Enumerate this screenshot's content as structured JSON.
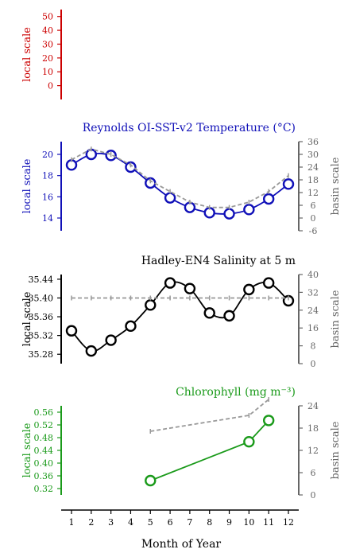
{
  "x_axis": {
    "label": "Month of Year",
    "ticks": [
      1,
      2,
      3,
      4,
      5,
      6,
      7,
      8,
      9,
      10,
      11,
      12
    ]
  },
  "chart_data": [
    {
      "type": "line",
      "title": "",
      "color": "#cc0000",
      "ylabel": "local scale",
      "ylim": [
        -10,
        55
      ],
      "yticks": [
        0,
        10,
        20,
        30,
        40,
        50
      ],
      "series": [
        {
          "role": "local",
          "x": [],
          "y": []
        }
      ]
    },
    {
      "type": "line",
      "title": "Reynolds OI-SST-v2 Temperature (°C)",
      "color": "#1010b8",
      "ylabel": "local scale",
      "ylim": [
        12.8,
        21.2
      ],
      "yticks": [
        14,
        16,
        18,
        20
      ],
      "right_axis": {
        "label": "basin scale",
        "ylim": [
          -6,
          36
        ],
        "ticks": [
          -6,
          0,
          6,
          12,
          18,
          24,
          30,
          36
        ]
      },
      "series": [
        {
          "role": "local",
          "x": [
            1,
            2,
            3,
            4,
            5,
            6,
            7,
            8,
            9,
            10,
            11,
            12
          ],
          "y": [
            19.0,
            20.0,
            19.9,
            18.8,
            17.3,
            15.9,
            15.0,
            14.5,
            14.4,
            14.8,
            15.8,
            17.2
          ]
        },
        {
          "role": "basin",
          "x": [
            1,
            2,
            3,
            4,
            5,
            6,
            7,
            8,
            9,
            10,
            11,
            12
          ],
          "y": [
            19.5,
            20.5,
            20.0,
            19.0,
            17.5,
            16.5,
            15.5,
            15.0,
            15.0,
            15.5,
            16.5,
            18.0
          ]
        }
      ]
    },
    {
      "type": "line",
      "title": "Hadley-EN4 Salinity at 5 m",
      "color": "#000000",
      "ylabel": "local scale",
      "ylim": [
        35.26,
        35.45
      ],
      "yticks": [
        35.28,
        35.32,
        35.36,
        35.4,
        35.44
      ],
      "right_axis": {
        "label": "basin scale",
        "ylim": [
          0,
          40
        ],
        "ticks": [
          0,
          8,
          16,
          24,
          32,
          40
        ]
      },
      "series": [
        {
          "role": "local",
          "x": [
            1,
            2,
            3,
            4,
            5,
            6,
            7,
            8,
            9,
            10,
            11,
            12
          ],
          "y": [
            35.33,
            35.287,
            35.31,
            35.34,
            35.385,
            35.432,
            35.42,
            35.368,
            35.362,
            35.418,
            35.432,
            35.394
          ]
        },
        {
          "role": "basin",
          "x": [
            1,
            2,
            3,
            4,
            5,
            6,
            7,
            8,
            9,
            10,
            11,
            12
          ],
          "y": [
            35.4,
            35.4,
            35.4,
            35.4,
            35.4,
            35.4,
            35.4,
            35.4,
            35.4,
            35.4,
            35.4,
            35.4
          ]
        }
      ]
    },
    {
      "type": "line",
      "title": "Chlorophyll (mg m⁻³)",
      "color": "#1a9a1a",
      "ylabel": "local scale",
      "ylim": [
        0.3,
        0.58
      ],
      "yticks": [
        0.32,
        0.36,
        0.4,
        0.44,
        0.48,
        0.52,
        0.56
      ],
      "right_axis": {
        "label": "basin scale",
        "ylim": [
          0,
          24
        ],
        "ticks": [
          0,
          6,
          12,
          18,
          24
        ]
      },
      "series": [
        {
          "role": "local",
          "x": [
            5,
            10,
            11
          ],
          "y": [
            0.345,
            0.467,
            0.534
          ]
        },
        {
          "role": "basin",
          "x": [
            5,
            10,
            11
          ],
          "y": [
            0.5,
            0.55,
            0.6
          ]
        }
      ]
    }
  ]
}
